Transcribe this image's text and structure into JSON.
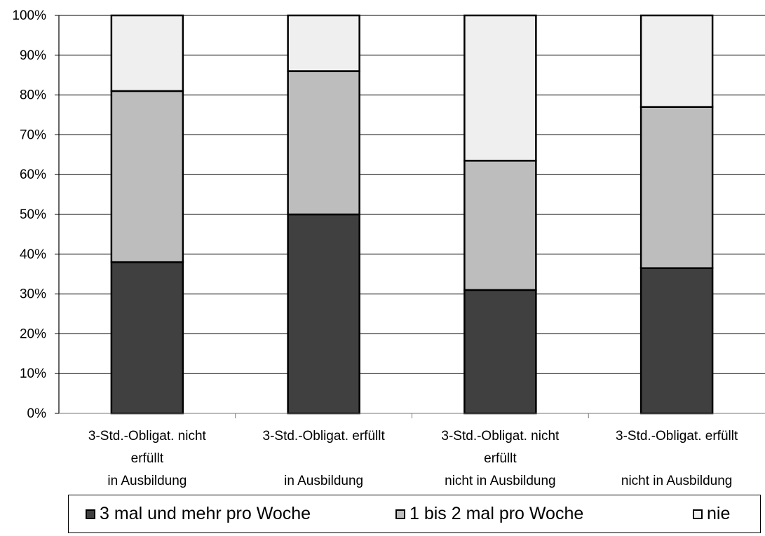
{
  "chart_data": {
    "type": "bar",
    "stacked": true,
    "percent": true,
    "categories": [
      [
        "3-Std.-Obligat. nicht",
        "erfüllt",
        "in Ausbildung"
      ],
      [
        "3-Std.-Obligat. erfüllt",
        "",
        "in Ausbildung"
      ],
      [
        "3-Std.-Obligat. nicht",
        "erfüllt",
        "nicht in Ausbildung"
      ],
      [
        "3-Std.-Obligat. erfüllt",
        "",
        "nicht in Ausbildung"
      ]
    ],
    "series": [
      {
        "name": "3 mal und mehr pro Woche",
        "color": "#404040",
        "values": [
          38,
          50,
          31,
          36.5
        ]
      },
      {
        "name": "1 bis 2 mal pro Woche",
        "color": "#bdbdbd",
        "values": [
          43,
          36,
          32.5,
          40.5
        ]
      },
      {
        "name": "nie",
        "color": "#efefef",
        "values": [
          19,
          14,
          36.5,
          23
        ]
      }
    ],
    "yticks": [
      "0%",
      "10%",
      "20%",
      "30%",
      "40%",
      "50%",
      "60%",
      "70%",
      "80%",
      "90%",
      "100%"
    ],
    "ylim": [
      0,
      100
    ],
    "grid": true,
    "legend_position": "bottom"
  }
}
